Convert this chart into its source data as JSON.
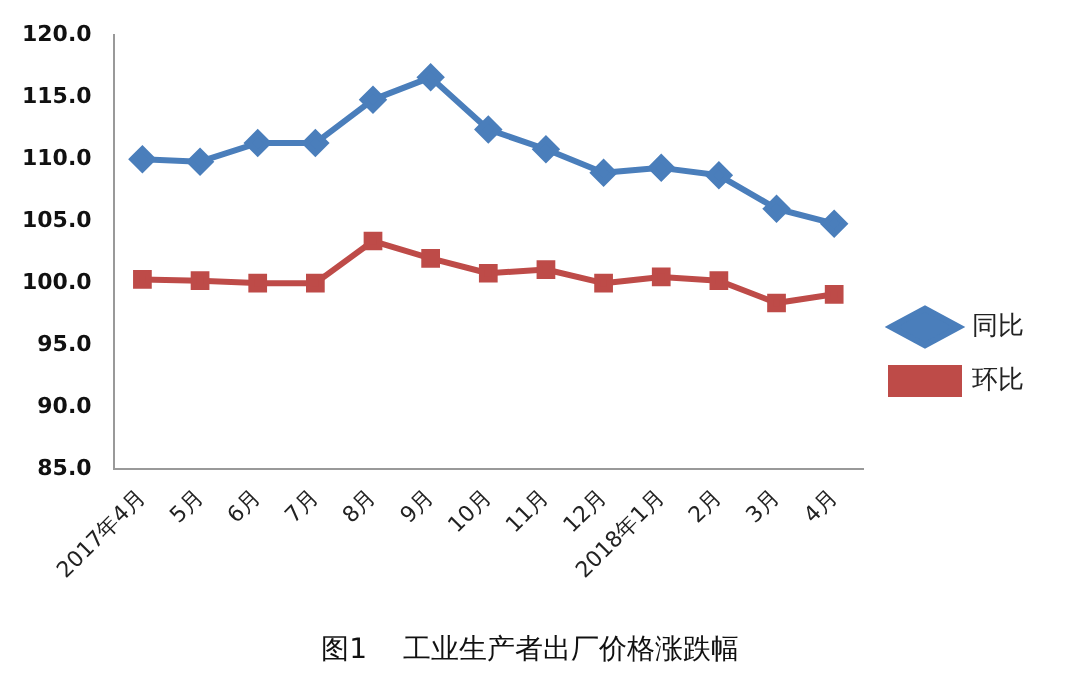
{
  "chart_data": {
    "type": "line",
    "title": "图1    工业生产者出厂价格涨跌幅",
    "categories": [
      "2017年4月",
      "5月",
      "6月",
      "7月",
      "8月",
      "9月",
      "10月",
      "11月",
      "12月",
      "2018年1月",
      "2月",
      "3月",
      "4月"
    ],
    "series": [
      {
        "name": "同比",
        "color": "#4a7ebb",
        "marker": "diamond",
        "values": [
          110.0,
          109.8,
          111.3,
          111.3,
          114.8,
          116.6,
          112.4,
          110.8,
          108.9,
          109.3,
          108.7,
          106.0,
          104.8
        ]
      },
      {
        "name": "环比",
        "color": "#be4b48",
        "marker": "square",
        "values": [
          100.3,
          100.2,
          100.0,
          100.0,
          103.4,
          102.0,
          100.8,
          101.1,
          100.0,
          100.5,
          100.2,
          98.4,
          99.1
        ]
      }
    ],
    "ylim": [
      85,
      120
    ],
    "yticks": [
      {
        "value": 85,
        "label": "85.0"
      },
      {
        "value": 90,
        "label": "90.0"
      },
      {
        "value": 95,
        "label": "95.0"
      },
      {
        "value": 100,
        "label": "100.0"
      },
      {
        "value": 105,
        "label": "105.0"
      },
      {
        "value": 110,
        "label": "110.0"
      },
      {
        "value": 115,
        "label": "115.0"
      },
      {
        "value": 120,
        "label": "120.0"
      }
    ],
    "grid": false,
    "legend": "right"
  }
}
